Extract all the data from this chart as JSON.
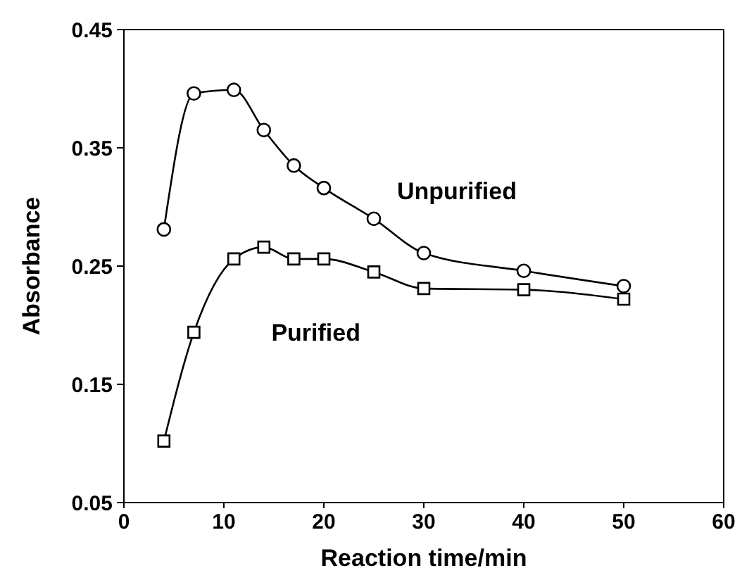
{
  "chart_data": {
    "type": "line",
    "xlabel": "Reaction time/min",
    "ylabel": "Absorbance",
    "xlim": [
      0,
      60
    ],
    "xticks": [
      0,
      10,
      20,
      30,
      40,
      50,
      60
    ],
    "ylim": [
      0.05,
      0.45
    ],
    "yticks": [
      0.05,
      0.15,
      0.25,
      0.35,
      0.45
    ],
    "grid": false,
    "series": [
      {
        "name": "Unpurified",
        "color": "#000000",
        "marker": "circle",
        "x": [
          4,
          7,
          11,
          14,
          17,
          20,
          25,
          30,
          40,
          50
        ],
        "values": [
          0.281,
          0.396,
          0.399,
          0.365,
          0.335,
          0.316,
          0.29,
          0.261,
          0.246,
          0.233
        ]
      },
      {
        "name": "Purified",
        "color": "#000000",
        "marker": "square",
        "x": [
          4,
          7,
          11,
          14,
          17,
          20,
          25,
          30,
          40,
          50
        ],
        "values": [
          0.102,
          0.194,
          0.256,
          0.266,
          0.256,
          0.256,
          0.245,
          0.231,
          0.23,
          0.222
        ]
      }
    ]
  }
}
